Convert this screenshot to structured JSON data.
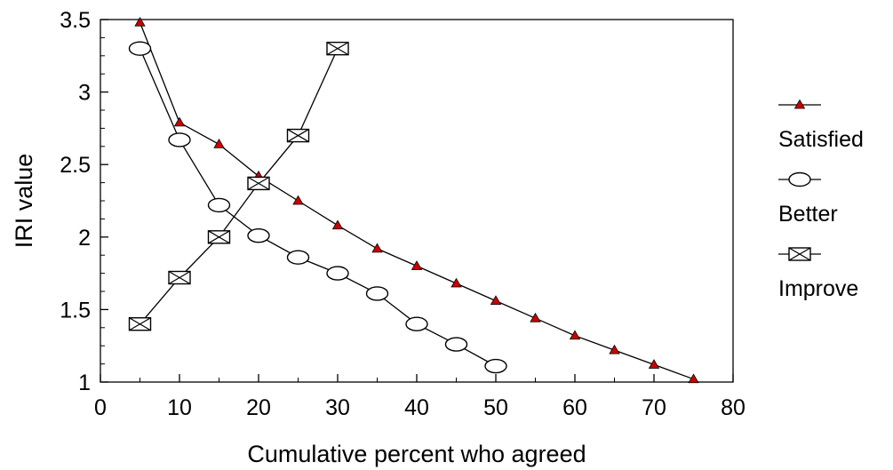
{
  "chart_data": {
    "type": "line",
    "xlabel": "Cumulative percent who agreed",
    "ylabel": "IRI value",
    "xlim": [
      0,
      80
    ],
    "ylim": [
      1,
      3.5
    ],
    "xticks": [
      "0",
      "10",
      "20",
      "30",
      "40",
      "50",
      "60",
      "70",
      "80"
    ],
    "yticks": [
      "1",
      "1.5",
      "2",
      "2.5",
      "3",
      "3.5"
    ],
    "grid": false,
    "legend_position": "right",
    "series": [
      {
        "name": "Satisfied",
        "marker": "triangle",
        "color": "#cc0000",
        "points": [
          {
            "x": 5,
            "y": 3.48
          },
          {
            "x": 10,
            "y": 2.79
          },
          {
            "x": 15,
            "y": 2.64
          },
          {
            "x": 20,
            "y": 2.42
          },
          {
            "x": 25,
            "y": 2.25
          },
          {
            "x": 30,
            "y": 2.08
          },
          {
            "x": 35,
            "y": 1.92
          },
          {
            "x": 40,
            "y": 1.8
          },
          {
            "x": 45,
            "y": 1.68
          },
          {
            "x": 50,
            "y": 1.56
          },
          {
            "x": 55,
            "y": 1.44
          },
          {
            "x": 60,
            "y": 1.32
          },
          {
            "x": 65,
            "y": 1.22
          },
          {
            "x": 70,
            "y": 1.12
          },
          {
            "x": 75,
            "y": 1.02
          }
        ]
      },
      {
        "name": "Better",
        "marker": "ellipse",
        "color": "#ffffff",
        "points": [
          {
            "x": 5,
            "y": 3.3
          },
          {
            "x": 10,
            "y": 2.67
          },
          {
            "x": 15,
            "y": 2.22
          },
          {
            "x": 20,
            "y": 2.01
          },
          {
            "x": 25,
            "y": 1.86
          },
          {
            "x": 30,
            "y": 1.75
          },
          {
            "x": 35,
            "y": 1.61
          },
          {
            "x": 40,
            "y": 1.4
          },
          {
            "x": 45,
            "y": 1.26
          },
          {
            "x": 50,
            "y": 1.11
          }
        ]
      },
      {
        "name": "Improve",
        "marker": "box-x",
        "color": "#ffffff",
        "points": [
          {
            "x": 5,
            "y": 1.4
          },
          {
            "x": 10,
            "y": 1.72
          },
          {
            "x": 15,
            "y": 2.0
          },
          {
            "x": 20,
            "y": 2.37
          },
          {
            "x": 25,
            "y": 2.7
          },
          {
            "x": 30,
            "y": 3.3
          }
        ]
      }
    ]
  }
}
